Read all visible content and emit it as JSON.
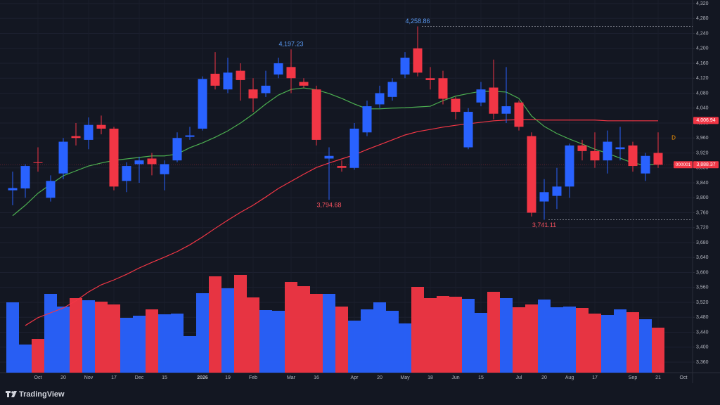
{
  "chart_data": {
    "type": "candlestick",
    "categories": [
      null,
      null,
      "Oct",
      null,
      "20",
      null,
      "Nov",
      null,
      "17",
      null,
      "Dec",
      null,
      "15",
      null,
      null,
      "2026",
      null,
      "19",
      null,
      "Feb",
      null,
      null,
      "Mar",
      null,
      "16",
      null,
      null,
      "Apr",
      null,
      "20",
      null,
      "May",
      null,
      "18",
      null,
      "Jun",
      null,
      "15",
      null,
      null,
      "Jul",
      null,
      "20",
      null,
      "Aug",
      null,
      "17",
      null,
      null,
      "Sep",
      null,
      "21"
    ],
    "categories_after": [
      "Oct"
    ],
    "open": [
      3820,
      3825,
      3895,
      3800,
      3865,
      3965,
      3955,
      3995,
      3985,
      3845,
      3890,
      3905,
      3863,
      3900,
      3963,
      3985,
      4132,
      4090,
      4140,
      4090,
      4080,
      4130,
      4150,
      4110,
      4090,
      3905,
      3885,
      3880,
      3975,
      4050,
      4070,
      4130,
      4200,
      4120,
      4120,
      4065,
      3935,
      4055,
      4095,
      4025,
      4055,
      3965,
      3790,
      3805,
      3830,
      3940,
      3925,
      3900,
      3930,
      3940,
      3865,
      3920
    ],
    "high": [
      3870,
      3890,
      3935,
      3860,
      3960,
      4000,
      4015,
      4020,
      3990,
      3895,
      3910,
      3920,
      3900,
      3975,
      3990,
      4125,
      4190,
      4175,
      4160,
      4120,
      4140,
      4175,
      4197.23,
      4120,
      4100,
      3935,
      3900,
      4000,
      4060,
      4100,
      4120,
      4190,
      4258.86,
      4150,
      4140,
      4070,
      4040,
      4110,
      4170,
      4150,
      4060,
      3975,
      3850,
      3880,
      3945,
      3955,
      3975,
      3980,
      3990,
      3950,
      3920,
      3975
    ],
    "low": [
      3780,
      3800,
      3870,
      3790,
      3850,
      3940,
      3930,
      3970,
      3820,
      3815,
      3840,
      3860,
      3820,
      3895,
      3955,
      3980,
      4090,
      4080,
      4060,
      4030,
      4070,
      4120,
      4080,
      4095,
      3940,
      3794.68,
      3870,
      3875,
      3965,
      4040,
      4060,
      4120,
      4125,
      4090,
      4050,
      4010,
      3930,
      4045,
      4010,
      4000,
      3980,
      3750,
      3741.11,
      3770,
      3800,
      3900,
      3880,
      3865,
      3900,
      3870,
      3845,
      3880
    ],
    "close": [
      3826,
      3885,
      3893,
      3845,
      3950,
      3960,
      3995,
      3985,
      3830,
      3885,
      3900,
      3890,
      3890,
      3960,
      3967,
      4118,
      4100,
      4135,
      4115,
      4066,
      4100,
      4160,
      4120,
      4100,
      3955,
      3912,
      3880,
      3985,
      4045,
      4080,
      4110,
      4175,
      4135,
      4115,
      4065,
      4030,
      4030,
      4090,
      4025,
      4045,
      3990,
      3760,
      3815,
      3830,
      3940,
      3925,
      3900,
      3950,
      3935,
      3885,
      3912,
      3888.37
    ],
    "high_value_labels": [
      null,
      null,
      null,
      null,
      null,
      null,
      null,
      null,
      null,
      null,
      null,
      null,
      null,
      null,
      null,
      null,
      null,
      null,
      null,
      null,
      null,
      null,
      "4,197.23",
      null,
      null,
      null,
      null,
      null,
      null,
      null,
      null,
      null,
      "4,258.86",
      null,
      null,
      null,
      null,
      null,
      null,
      null,
      null,
      null,
      null,
      null,
      null,
      null,
      null,
      null,
      null,
      null,
      null,
      null
    ],
    "low_value_labels": [
      null,
      null,
      null,
      null,
      null,
      null,
      null,
      null,
      null,
      null,
      null,
      null,
      null,
      null,
      null,
      null,
      null,
      null,
      null,
      null,
      null,
      null,
      null,
      null,
      null,
      "3,794.68",
      null,
      null,
      null,
      null,
      null,
      null,
      null,
      null,
      null,
      null,
      null,
      null,
      null,
      null,
      null,
      null,
      "3,741.11",
      null,
      null,
      null,
      null,
      null,
      null,
      null,
      null,
      null
    ],
    "volume": [
      100,
      40,
      48,
      112,
      94,
      106,
      103,
      101,
      97,
      78,
      81,
      90,
      83,
      84,
      52,
      113,
      137,
      120,
      139,
      107,
      89,
      88,
      129,
      123,
      112,
      112,
      94,
      74,
      90,
      100,
      88,
      70,
      122,
      106,
      109,
      108,
      105,
      85,
      115,
      106,
      93,
      97,
      104,
      93,
      94,
      92,
      84,
      82,
      90,
      86,
      76,
      64
    ],
    "up_color": "#2962ff",
    "down_color": "#f23645",
    "series": [
      {
        "color": "#4caf50",
        "values": [
          3752,
          3780,
          3812,
          3836,
          3859,
          3872,
          3885,
          3893,
          3900,
          3904,
          3908,
          3912,
          3912,
          3917,
          3934,
          3947,
          3962,
          3979,
          4000,
          4024,
          4051,
          4075,
          4090,
          4094,
          4089,
          4079,
          4066,
          4051,
          4038,
          4038,
          4040,
          4041,
          4043,
          4045,
          4060,
          4072,
          4079,
          4085,
          4085,
          4083,
          4066,
          4019,
          3991,
          3972,
          3957,
          3944,
          3930,
          3919,
          3906,
          3893,
          3887,
          3891
        ]
      },
      {
        "color": "#f23645",
        "values": [
          null,
          3458,
          3479,
          3492,
          3505,
          3524,
          3548,
          3567,
          3580,
          3595,
          3612,
          3627,
          3641,
          3656,
          3674,
          3695,
          3718,
          3740,
          3761,
          3780,
          3802,
          3825,
          3844,
          3863,
          3881,
          3893,
          3904,
          3915,
          3929,
          3942,
          3955,
          3968,
          3977,
          3983,
          3989,
          3994,
          3998,
          4002,
          4006,
          4008,
          4009,
          4009,
          4008,
          4008,
          4008,
          4008,
          4008,
          4006,
          4006,
          4006,
          4006,
          4006
        ]
      }
    ],
    "price_badges": [
      {
        "value": 4006.94,
        "label": "4,006.94",
        "color": "#f23645"
      },
      {
        "value": 3888.37,
        "label": "3,888.37",
        "color": "#f23645"
      }
    ],
    "countdown": "000001",
    "ylim": [
      3360,
      4320
    ],
    "yticks": [
      {
        "value": 3360,
        "label": "3,360"
      },
      {
        "value": 3400,
        "label": "3,400"
      },
      {
        "value": 3440,
        "label": "3,440"
      },
      {
        "value": 3480,
        "label": "3,480"
      },
      {
        "value": 3520,
        "label": "3,520"
      },
      {
        "value": 3560,
        "label": "3,560"
      },
      {
        "value": 3600,
        "label": "3,600"
      },
      {
        "value": 3640,
        "label": "3,640"
      },
      {
        "value": 3680,
        "label": "3,680"
      },
      {
        "value": 3720,
        "label": "3,720"
      },
      {
        "value": 3760,
        "label": "3,760"
      },
      {
        "value": 3800,
        "label": "3,800"
      },
      {
        "value": 3840,
        "label": "3,840"
      },
      {
        "value": 3880,
        "label": "3,880"
      },
      {
        "value": 3920,
        "label": "3,920"
      },
      {
        "value": 3960,
        "label": "3,960"
      },
      {
        "value": 4000,
        "label": "4,000"
      },
      {
        "value": 4040,
        "label": "4,040"
      },
      {
        "value": 4080,
        "label": "4,080"
      },
      {
        "value": 4120,
        "label": "4,120"
      },
      {
        "value": 4160,
        "label": "4,160"
      },
      {
        "value": 4200,
        "label": "4,200"
      },
      {
        "value": 4240,
        "label": "4,240"
      },
      {
        "value": 4280,
        "label": "4,280"
      },
      {
        "value": 4320,
        "label": "4,320"
      }
    ],
    "grid": true,
    "marker": "D",
    "branding": "TradingView"
  }
}
